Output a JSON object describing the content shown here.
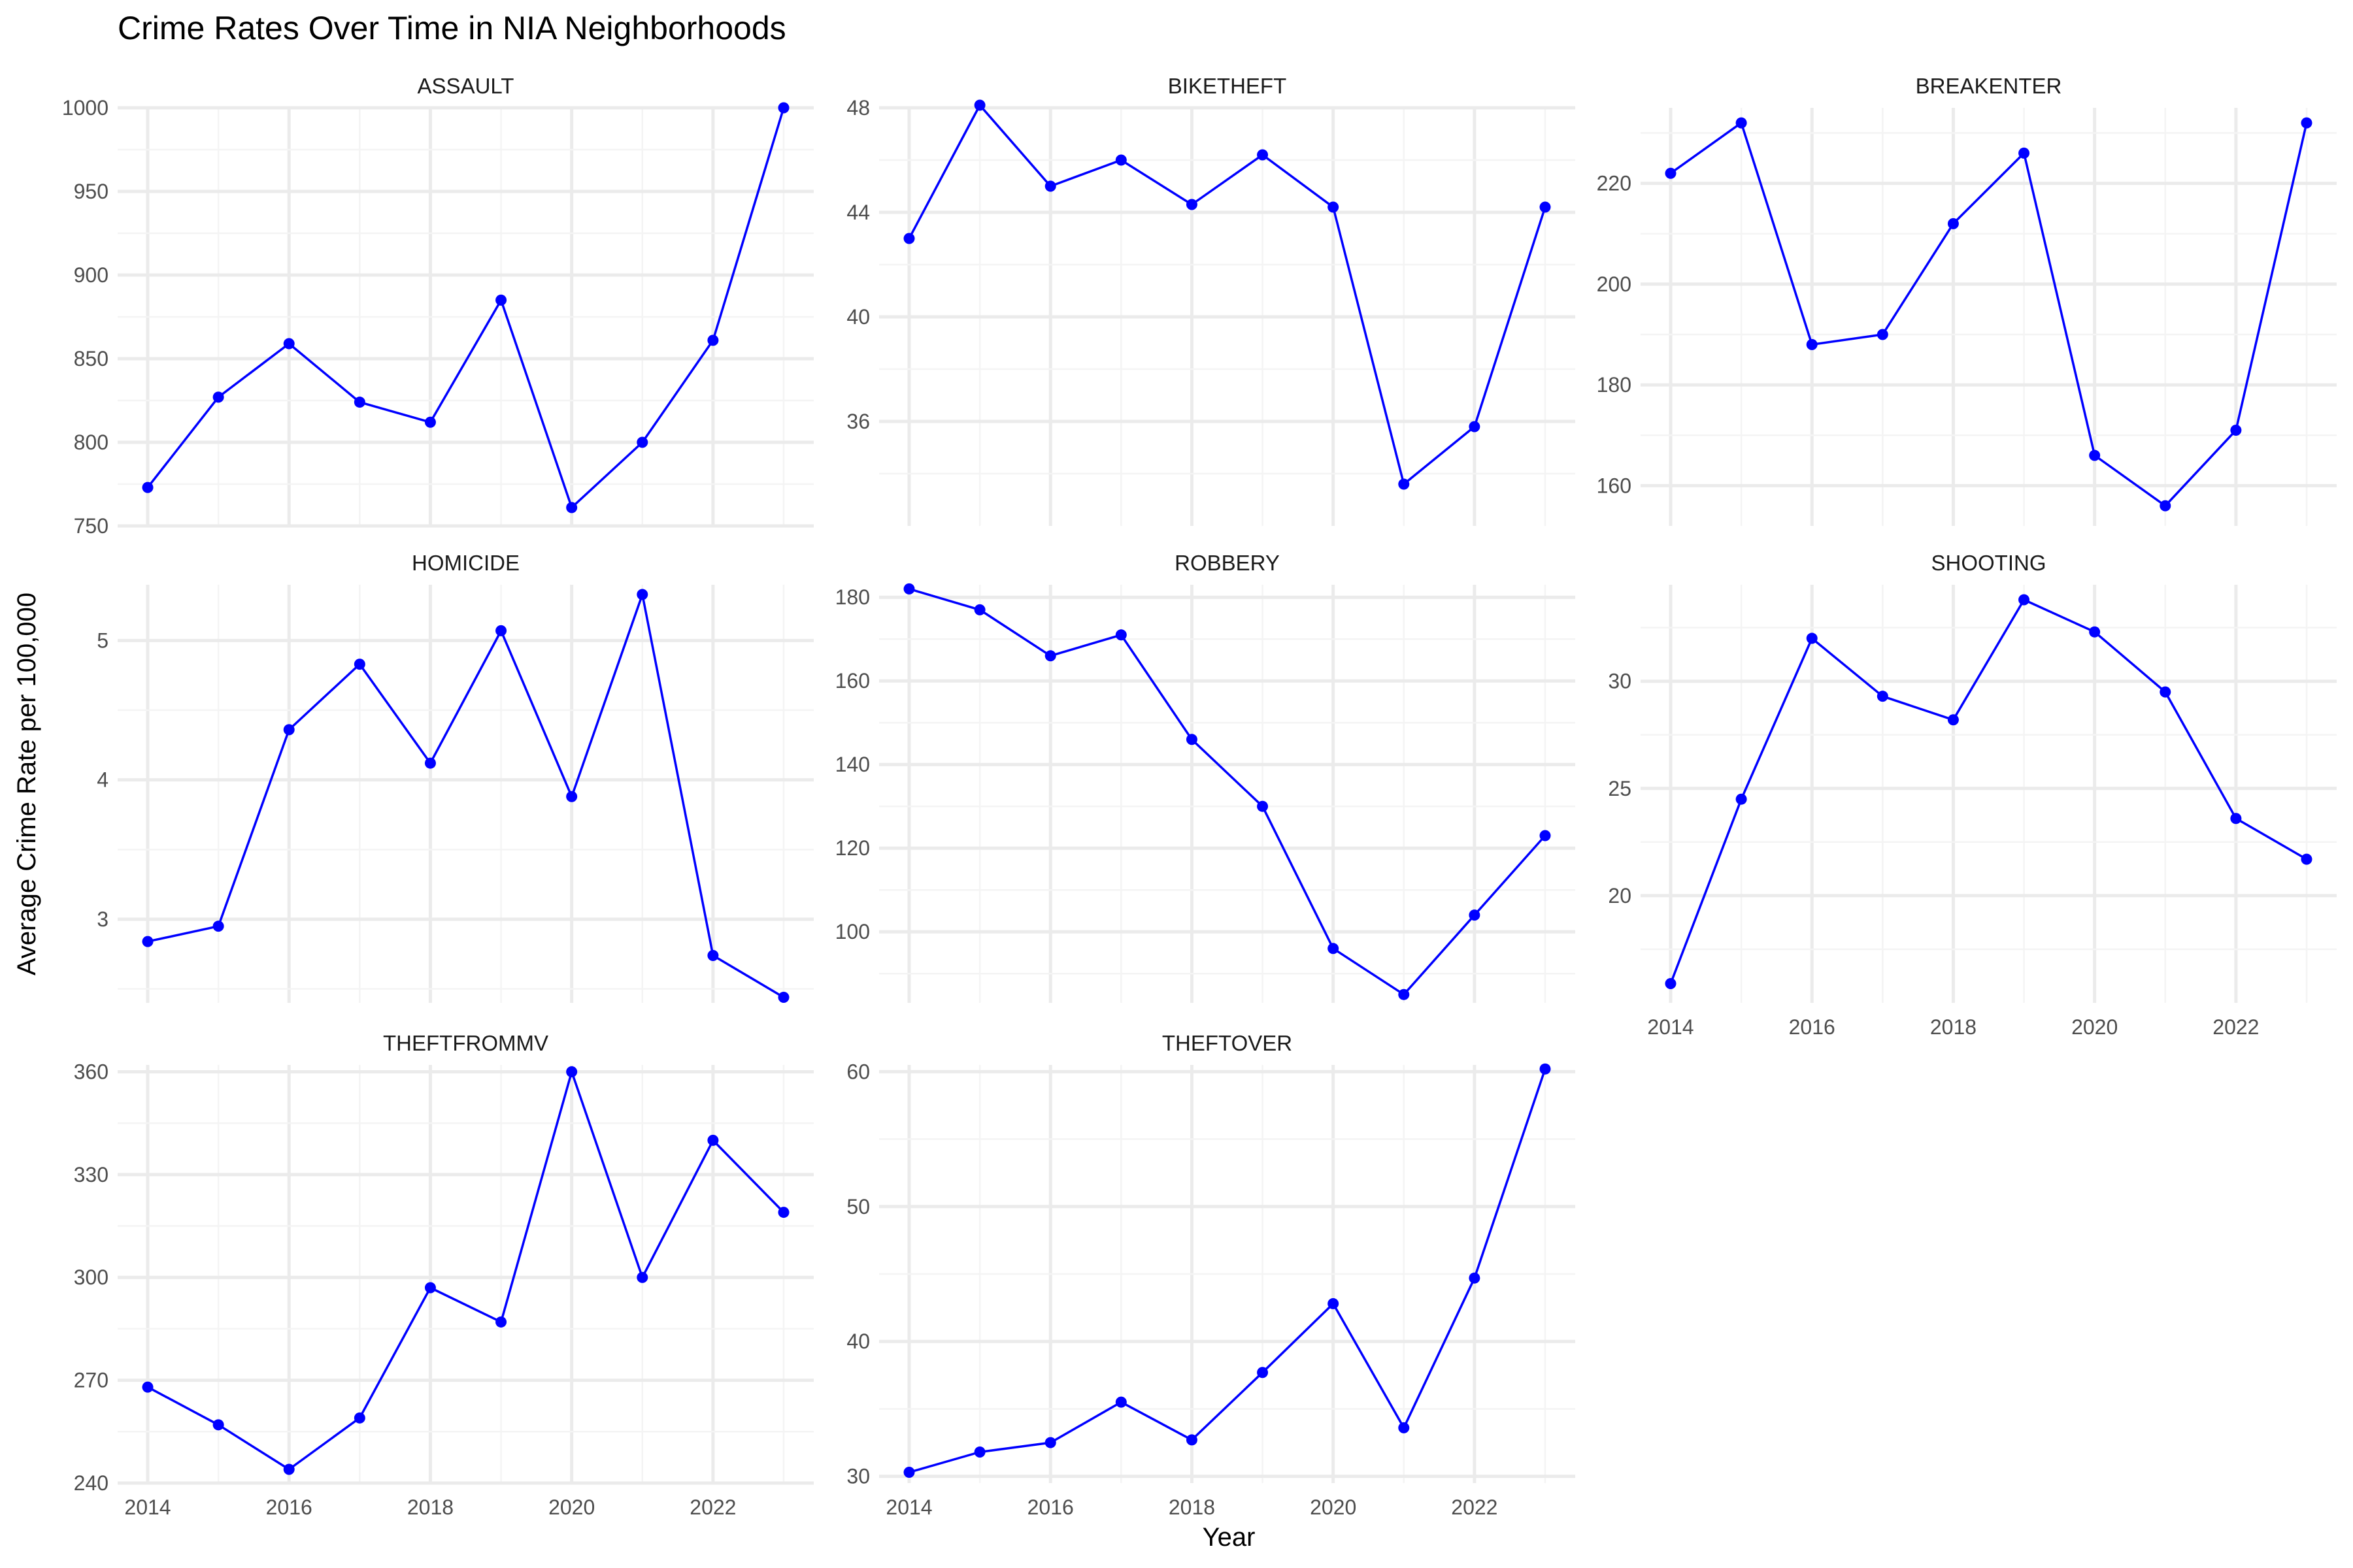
{
  "title": "Crime Rates Over Time in NIA Neighborhoods",
  "xlabel": "Year",
  "ylabel": "Average Crime Rate per 100,000",
  "colors": {
    "line": "#0000ff",
    "grid_major": "#ebebeb",
    "grid_minor": "#f4f4f4",
    "tick_text": "#4d4d4d"
  },
  "chart_data": {
    "type": "line",
    "layout": "faceted small multiples, 3 columns x 3 rows, independent y scales, grid on, no legend",
    "x_ticks": [
      "2014",
      "2016",
      "2018",
      "2020",
      "2022"
    ],
    "xlim": [
      2014,
      2023
    ],
    "panels": [
      {
        "name": "ASSAULT",
        "ylim": [
          750,
          1000
        ],
        "y_ticks": [
          "750",
          "800",
          "850",
          "900",
          "950",
          "1000"
        ],
        "x": [
          2014,
          2015,
          2016,
          2017,
          2018,
          2019,
          2020,
          2021,
          2022,
          2023
        ],
        "values": [
          773,
          827,
          859,
          824,
          812,
          885,
          761,
          800,
          861,
          1000
        ]
      },
      {
        "name": "BIKETHEFT",
        "ylim": [
          32,
          48
        ],
        "y_ticks": [
          "36",
          "40",
          "44",
          "48"
        ],
        "x": [
          2014,
          2015,
          2016,
          2017,
          2018,
          2019,
          2020,
          2021,
          2022,
          2023
        ],
        "values": [
          43.0,
          48.1,
          45.0,
          46.0,
          44.3,
          46.2,
          44.2,
          33.6,
          35.8,
          44.2
        ]
      },
      {
        "name": "BREAKENTER",
        "ylim": [
          152,
          235
        ],
        "y_ticks": [
          "160",
          "180",
          "200",
          "220"
        ],
        "x": [
          2014,
          2015,
          2016,
          2017,
          2018,
          2019,
          2020,
          2021,
          2022,
          2023
        ],
        "values": [
          222,
          232,
          188,
          190,
          212,
          226,
          166,
          156,
          171,
          232
        ]
      },
      {
        "name": "HOMICIDE",
        "ylim": [
          2.4,
          5.4
        ],
        "y_ticks": [
          "3",
          "4",
          "5"
        ],
        "x": [
          2014,
          2015,
          2016,
          2017,
          2018,
          2019,
          2020,
          2021,
          2022,
          2023
        ],
        "values": [
          2.84,
          2.95,
          4.36,
          4.83,
          4.12,
          5.07,
          3.88,
          5.33,
          2.74,
          2.44
        ]
      },
      {
        "name": "ROBBERY",
        "ylim": [
          83,
          183
        ],
        "y_ticks": [
          "100",
          "120",
          "140",
          "160",
          "180"
        ],
        "x": [
          2014,
          2015,
          2016,
          2017,
          2018,
          2019,
          2020,
          2021,
          2022,
          2023
        ],
        "values": [
          182,
          177,
          166,
          171,
          146,
          130,
          96,
          85,
          104,
          123
        ]
      },
      {
        "name": "SHOOTING",
        "ylim": [
          15,
          34.5
        ],
        "y_ticks": [
          "20",
          "25",
          "30"
        ],
        "x": [
          2014,
          2015,
          2016,
          2017,
          2018,
          2019,
          2020,
          2021,
          2022,
          2023
        ],
        "values": [
          15.9,
          24.5,
          32.0,
          29.3,
          28.2,
          33.8,
          32.3,
          29.5,
          23.6,
          21.7
        ]
      },
      {
        "name": "THEFTFROMMV",
        "ylim": [
          240,
          362
        ],
        "y_ticks": [
          "240",
          "270",
          "300",
          "330",
          "360"
        ],
        "x": [
          2014,
          2015,
          2016,
          2017,
          2018,
          2019,
          2020,
          2021,
          2022,
          2023
        ],
        "values": [
          268,
          257,
          244,
          259,
          297,
          287,
          360,
          300,
          340,
          319
        ]
      },
      {
        "name": "THEFTOVER",
        "ylim": [
          29.5,
          60.5
        ],
        "y_ticks": [
          "30",
          "40",
          "50",
          "60"
        ],
        "x": [
          2014,
          2015,
          2016,
          2017,
          2018,
          2019,
          2020,
          2021,
          2022,
          2023
        ],
        "values": [
          30.3,
          31.8,
          32.5,
          35.5,
          32.7,
          37.7,
          42.8,
          33.6,
          44.7,
          60.2
        ]
      }
    ]
  }
}
